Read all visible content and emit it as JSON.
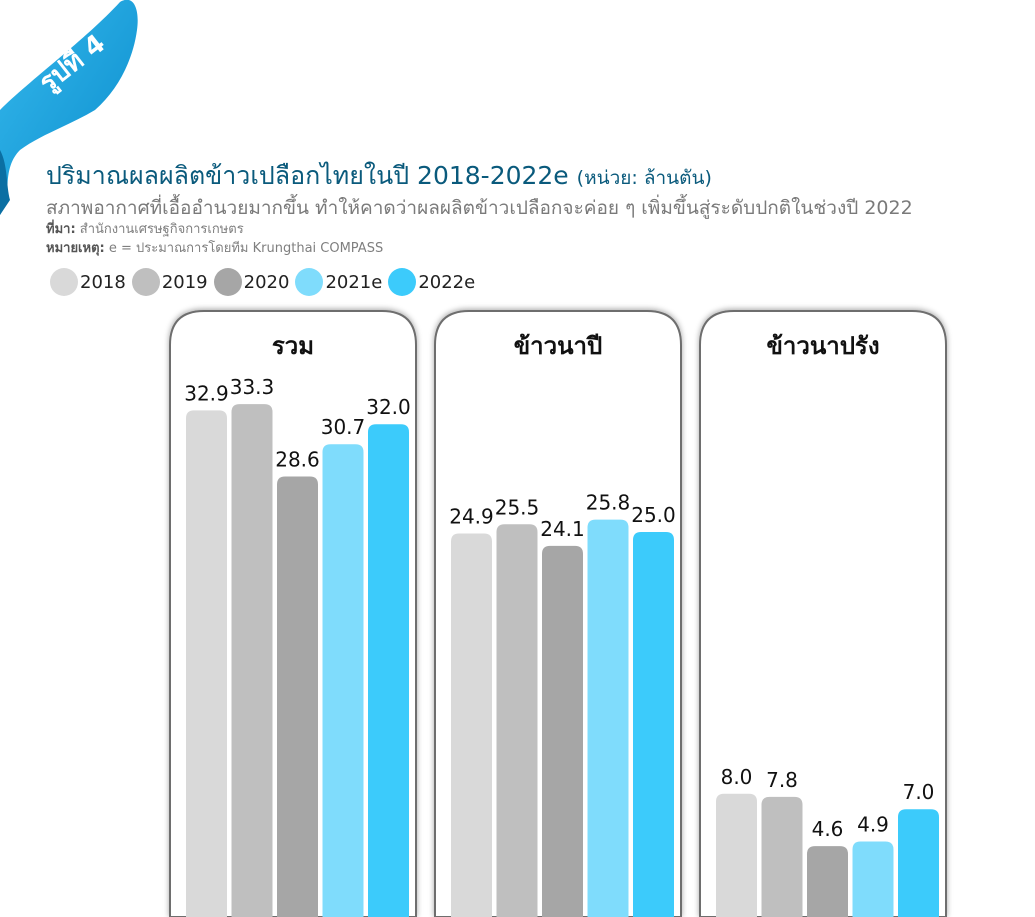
{
  "figure_label": "รูปที่ 4",
  "title": "ปริมาณผลผลิตข้าวเปลือกไทยในปี 2018-2022e",
  "unit": "(หน่วย: ล้านตัน)",
  "subtitle": "สภาพอากาศที่เอื้ออำนวยมากขึ้น ทำให้คาดว่าผลผลิตข้าวเปลือกจะค่อย ๆ เพิ่มขึ้นสู่ระดับปกติในช่วงปี 2022",
  "source_label": "ที่มา:",
  "source_text": "สำนักงานเศรษฐกิจการเกษตร",
  "note_label": "หมายเหตุ:",
  "note_text": "e = ประมาณการโดยทีม Krungthai COMPASS",
  "colors": {
    "ribbon": "#1aa6de",
    "title": "#0a5a7c",
    "series": [
      "#d9d9d9",
      "#bfbfbf",
      "#a6a6a6",
      "#7fdcfc",
      "#3ccbfb"
    ]
  },
  "chart_data": {
    "type": "bar",
    "categories": [
      "รวม",
      "ข้าวนาปี",
      "ข้าวนาปรัง"
    ],
    "series": [
      {
        "name": "2018",
        "values": [
          32.9,
          24.9,
          8.0
        ]
      },
      {
        "name": "2019",
        "values": [
          33.3,
          25.5,
          7.8
        ]
      },
      {
        "name": "2020",
        "values": [
          28.6,
          24.1,
          4.6
        ]
      },
      {
        "name": "2021e",
        "values": [
          30.7,
          25.8,
          4.9
        ]
      },
      {
        "name": "2022e",
        "values": [
          32.0,
          25.0,
          7.0
        ]
      }
    ],
    "legend_position": "top-left",
    "grid": false,
    "data_labels": true
  }
}
